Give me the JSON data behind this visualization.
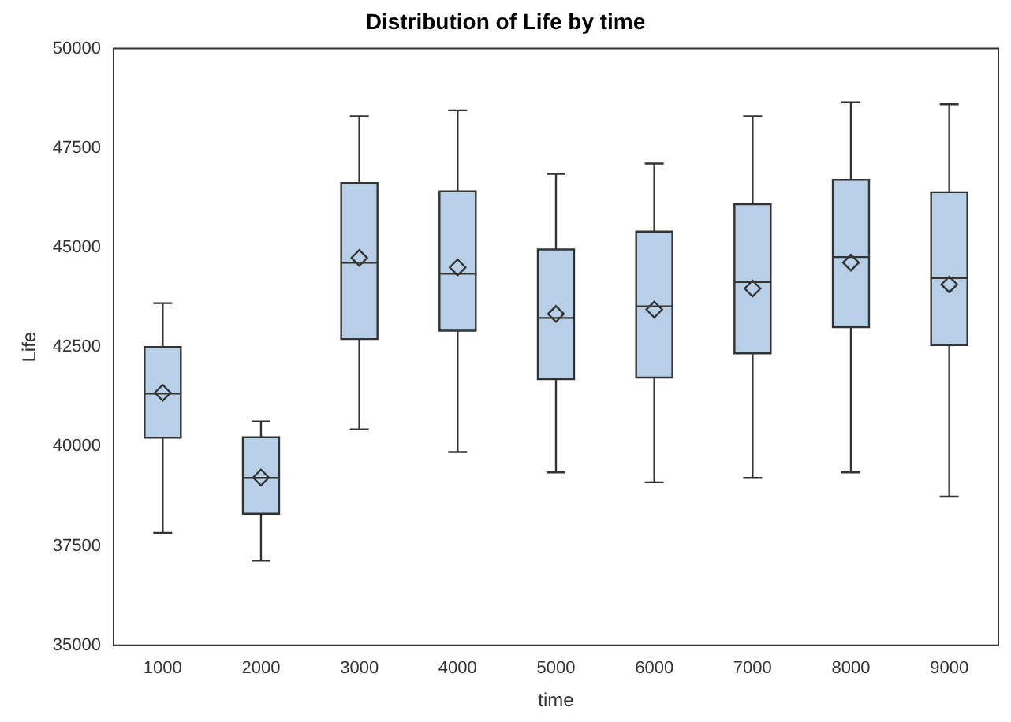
{
  "chart_data": {
    "type": "box",
    "title": "Distribution of Life by time",
    "xlabel": "time",
    "ylabel": "Life",
    "categories": [
      "1000",
      "2000",
      "3000",
      "4000",
      "5000",
      "6000",
      "7000",
      "8000",
      "9000"
    ],
    "color": "#b8cfe8",
    "boxes": [
      {
        "low": 37830,
        "q1": 40220,
        "median": 41330,
        "q3": 42500,
        "high": 43600,
        "mean": 41350
      },
      {
        "low": 37130,
        "q1": 38310,
        "median": 39210,
        "q3": 40230,
        "high": 40630,
        "mean": 39220
      },
      {
        "low": 40430,
        "q1": 42700,
        "median": 44620,
        "q3": 46620,
        "high": 48300,
        "mean": 44740
      },
      {
        "low": 39860,
        "q1": 42910,
        "median": 44340,
        "q3": 46410,
        "high": 48450,
        "mean": 44500
      },
      {
        "low": 39350,
        "q1": 41690,
        "median": 43230,
        "q3": 44950,
        "high": 46850,
        "mean": 43330
      },
      {
        "low": 39100,
        "q1": 41730,
        "median": 43520,
        "q3": 45400,
        "high": 47110,
        "mean": 43440
      },
      {
        "low": 39210,
        "q1": 42340,
        "median": 44130,
        "q3": 46090,
        "high": 48300,
        "mean": 43970
      },
      {
        "low": 39350,
        "q1": 43000,
        "median": 44760,
        "q3": 46700,
        "high": 48650,
        "mean": 44620
      },
      {
        "low": 38740,
        "q1": 42550,
        "median": 44230,
        "q3": 46390,
        "high": 48600,
        "mean": 44070
      }
    ],
    "ylim": [
      35000,
      50000
    ],
    "yticks": [
      35000,
      37500,
      40000,
      42500,
      45000,
      47500,
      50000
    ]
  }
}
